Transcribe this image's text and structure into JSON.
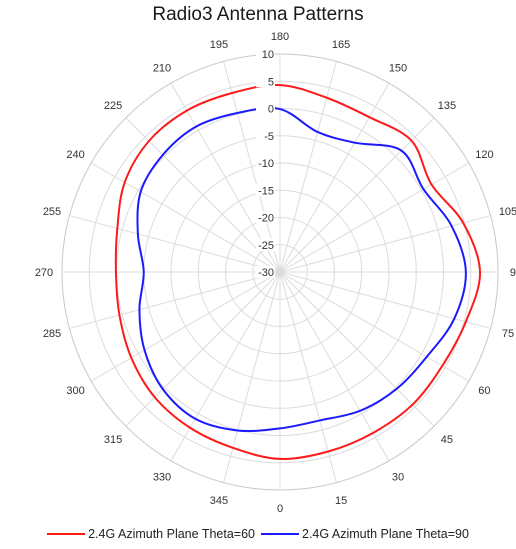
{
  "chart_data": {
    "type": "polar-line",
    "title": "Radio3 Antenna Patterns",
    "angular_axis": {
      "unit": "degrees",
      "zero_location": "bottom",
      "direction": "counterclockwise",
      "ticks": [
        0,
        15,
        30,
        45,
        60,
        75,
        90,
        105,
        120,
        135,
        150,
        165,
        180,
        195,
        210,
        225,
        240,
        255,
        270,
        285,
        300,
        315,
        330,
        345
      ],
      "tick_labels": [
        "0",
        "15",
        "30",
        "45",
        "60",
        "75",
        "90",
        "105",
        "120",
        "135",
        "150",
        "165",
        "180",
        "195",
        "210",
        "225",
        "240",
        "255",
        "270",
        "285",
        "300",
        "315",
        "330",
        "345"
      ]
    },
    "radial_axis": {
      "range": [
        -30,
        10
      ],
      "ticks": [
        -30,
        -25,
        -20,
        -15,
        -10,
        -5,
        0,
        5,
        10
      ],
      "tick_labels": [
        "-30",
        "-25",
        "-20",
        "-15",
        "-10",
        "-5",
        "0",
        "5",
        "10"
      ]
    },
    "grid": true,
    "legend_position": "bottom",
    "series": [
      {
        "name": "2.4G Azimuth Plane Theta=60",
        "color": "#ff1a1a",
        "angles": [
          0,
          15,
          30,
          45,
          60,
          75,
          90,
          105,
          120,
          135,
          150,
          165,
          180,
          195,
          210,
          225,
          240,
          255,
          270,
          285,
          300,
          315,
          330,
          345
        ],
        "values": [
          4.3,
          4.1,
          4.1,
          4.4,
          4.4,
          5.3,
          6.7,
          4.8,
          2.1,
          4.1,
          2.8,
          3.1,
          4.3,
          4.0,
          4.2,
          4.0,
          2.9,
          0.9,
          0.1,
          0.5,
          1.5,
          2.5,
          3.0,
          3.4
        ]
      },
      {
        "name": "2.4G Azimuth Plane Theta=90",
        "color": "#1a1aff",
        "angles": [
          0,
          15,
          30,
          45,
          60,
          75,
          90,
          105,
          120,
          135,
          150,
          165,
          180,
          195,
          210,
          225,
          240,
          255,
          270,
          285,
          300,
          315,
          330,
          345
        ],
        "values": [
          -1.3,
          -1.8,
          -0.6,
          0.3,
          1.1,
          3.1,
          4.1,
          2.6,
          0.4,
          1.5,
          -2.6,
          -3.4,
          -0.1,
          0.2,
          0.8,
          0.4,
          -0.5,
          -3.0,
          -5.0,
          -3.3,
          -1.3,
          0.4,
          1.1,
          0.1
        ]
      }
    ]
  }
}
